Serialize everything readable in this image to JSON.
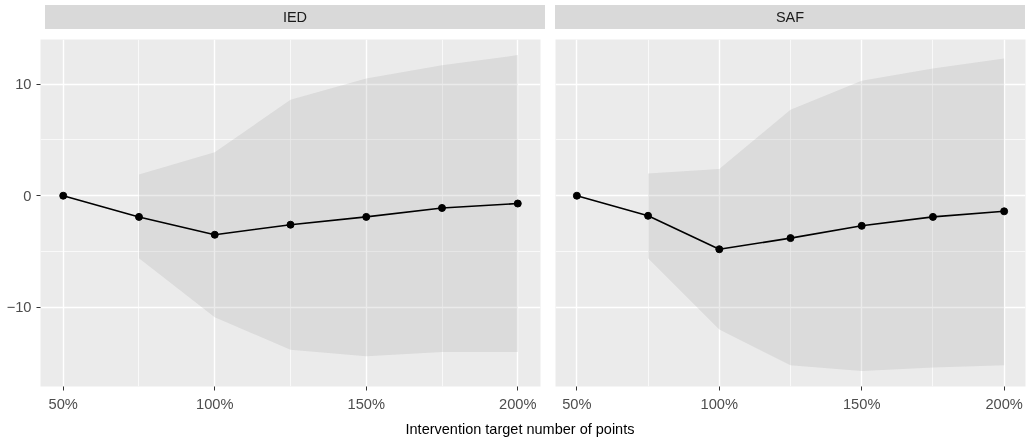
{
  "chart_data": [
    {
      "type": "line",
      "title": "IED",
      "xlabel": "Intervention target number of points",
      "x": [
        50,
        75,
        100,
        125,
        150,
        175,
        200
      ],
      "xlim": [
        42.5,
        207.5
      ],
      "ylim": [
        -17.1,
        14.0
      ],
      "xticks": [
        {
          "value": 50,
          "label": "50%"
        },
        {
          "value": 100,
          "label": "100%"
        },
        {
          "value": 150,
          "label": "150%"
        },
        {
          "value": 200,
          "label": "200%"
        }
      ],
      "yticks": [
        {
          "value": -10,
          "label": "−10"
        },
        0,
        10
      ],
      "grid": true,
      "marker": "circle",
      "line_style": "solid",
      "series": [
        {
          "color": "#000000",
          "values": [
            0,
            -1.9,
            -3.5,
            -2.6,
            -1.9,
            -1.1,
            -0.7
          ],
          "lower": [
            null,
            -5.6,
            -10.9,
            -13.8,
            -14.4,
            -14.0,
            -14.0
          ],
          "upper": [
            null,
            1.9,
            3.9,
            8.6,
            10.5,
            11.7,
            12.6
          ]
        }
      ]
    },
    {
      "type": "line",
      "title": "SAF",
      "x": [
        50,
        75,
        100,
        125,
        150,
        175,
        200
      ],
      "xlim": [
        42.5,
        207.5
      ],
      "ylim": [
        -17.1,
        14.0
      ],
      "xticks": [
        {
          "value": 50,
          "label": "50%"
        },
        {
          "value": 100,
          "label": "100%"
        },
        {
          "value": 150,
          "label": "150%"
        },
        {
          "value": 200,
          "label": "200%"
        }
      ],
      "yticks": [
        -10,
        0,
        10
      ],
      "grid": true,
      "marker": "circle",
      "line_style": "solid",
      "tick_labels": "x",
      "series": [
        {
          "color": "#000000",
          "values": [
            0,
            -1.8,
            -4.8,
            -3.8,
            -2.7,
            -1.9,
            -1.4
          ],
          "lower": [
            null,
            -5.6,
            -12.0,
            -15.2,
            -15.7,
            -15.4,
            -15.2
          ],
          "upper": [
            null,
            2.0,
            2.4,
            7.7,
            10.3,
            11.4,
            12.3
          ]
        }
      ]
    }
  ]
}
